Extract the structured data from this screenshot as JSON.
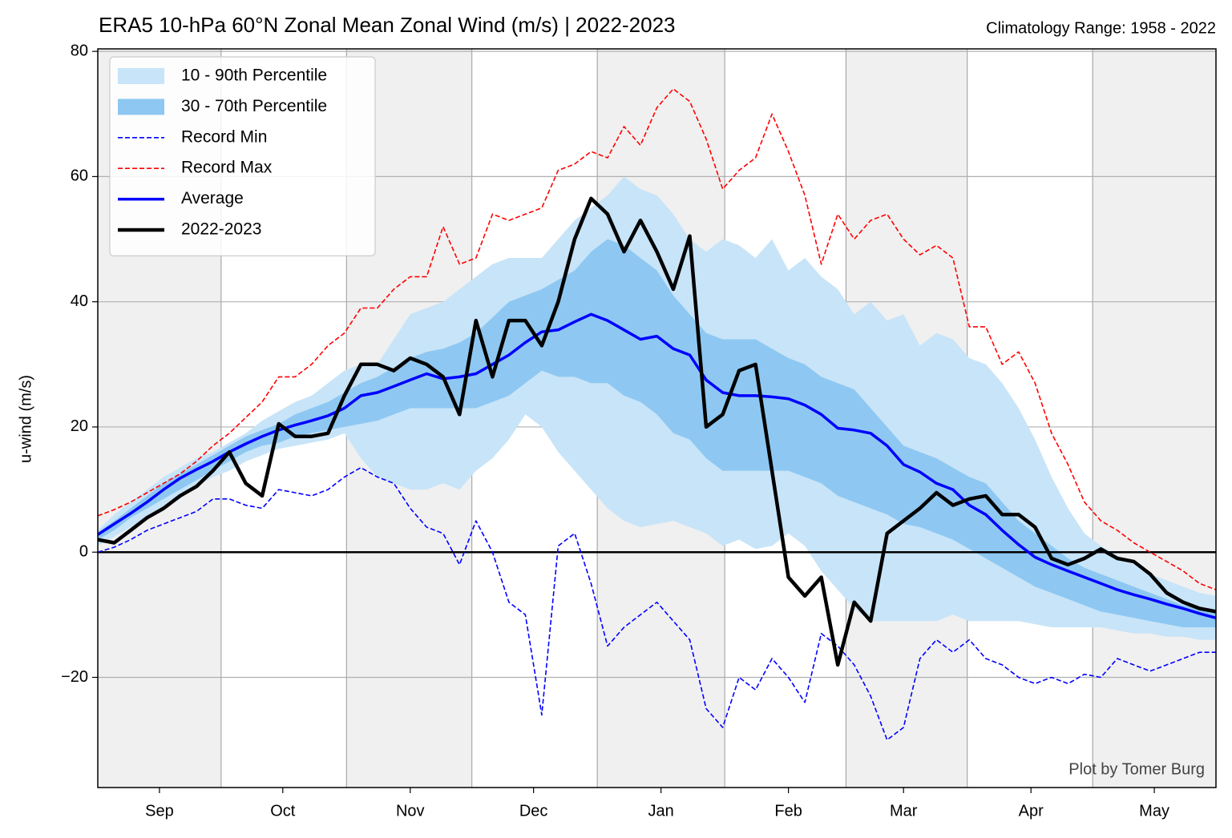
{
  "chart_data": {
    "type": "line",
    "title": "ERA5 10-hPa 60°N Zonal Mean Zonal Wind (m/s) | 2022-2023",
    "subtitle": "Climatology Range: 1958 - 2022",
    "ylabel": "u-wind (m/s)",
    "annotation": "Plot by Tomer Burg",
    "legend": "upper left",
    "grid": true,
    "x": [
      0,
      4,
      8,
      12,
      16,
      20,
      24,
      28,
      32,
      36,
      40,
      44,
      48,
      52,
      56,
      60,
      64,
      68,
      72,
      76,
      80,
      84,
      88,
      92,
      96,
      100,
      104,
      108,
      112,
      116,
      120,
      124,
      128,
      132,
      136,
      140,
      144,
      148,
      152,
      156,
      160,
      164,
      168,
      172,
      176,
      180,
      184,
      188,
      192,
      196,
      200,
      204,
      208,
      212,
      216,
      220,
      224,
      228,
      232,
      236,
      240,
      244,
      248,
      252,
      256,
      260,
      264,
      268,
      272
    ],
    "xlim": [
      0,
      272
    ],
    "xticks": [
      {
        "value": 15,
        "label": "Sep"
      },
      {
        "value": 45,
        "label": "Oct"
      },
      {
        "value": 76,
        "label": "Nov"
      },
      {
        "value": 106,
        "label": "Dec"
      },
      {
        "value": 137,
        "label": "Jan"
      },
      {
        "value": 168,
        "label": "Feb"
      },
      {
        "value": 196,
        "label": "Mar"
      },
      {
        "value": 227,
        "label": "Apr"
      },
      {
        "value": 257,
        "label": "May"
      }
    ],
    "ylim": [
      -37.6,
      80.4
    ],
    "yticks": [
      {
        "value": -20,
        "label": "−20"
      },
      0,
      20,
      40,
      60,
      80
    ],
    "bands": [
      {
        "name": "10 - 90th Percentile",
        "color": "#c8e4f8",
        "low": [
          1,
          2.5,
          4,
          5.5,
          7,
          8.5,
          10.5,
          12,
          13,
          14.5,
          15.5,
          16.5,
          17,
          17.5,
          18,
          19,
          15,
          12,
          11,
          10,
          10,
          11,
          10,
          13,
          15,
          18,
          22,
          20,
          16,
          13,
          10,
          7,
          5,
          4,
          4.5,
          5,
          4,
          3,
          1,
          2,
          0.5,
          1,
          3,
          1,
          -3,
          -6,
          -9,
          -11,
          -11,
          -11,
          -11,
          -11,
          -10,
          -11,
          -11,
          -11,
          -11,
          -11.5,
          -12,
          -12,
          -12,
          -12,
          -12.5,
          -13,
          -13,
          -13.5,
          -13.5,
          -14,
          -14
        ],
        "high": [
          3.5,
          6,
          8,
          10,
          12,
          13.5,
          15,
          16,
          17.5,
          19,
          21,
          22.5,
          24,
          25,
          27,
          29,
          30,
          30,
          34,
          38,
          39,
          40,
          42,
          44,
          46,
          47,
          47,
          47,
          50,
          53,
          55,
          57,
          60,
          58,
          57,
          54,
          50,
          48,
          50,
          49,
          47,
          50,
          45,
          47,
          44,
          42,
          38,
          40,
          37,
          38,
          33,
          35,
          34,
          31,
          30,
          27,
          23,
          18,
          12,
          7,
          3,
          1,
          -0.5,
          -2,
          -3.5,
          -4.5,
          -5.5,
          -6.5,
          -7
        ]
      },
      {
        "name": "30 - 70th Percentile",
        "color": "#8ec8f2",
        "low": [
          2,
          3.5,
          5.5,
          7,
          8.5,
          10,
          11.5,
          13,
          14.5,
          16,
          17,
          17.5,
          18.5,
          19,
          19.5,
          20,
          20.5,
          21,
          22,
          23,
          23,
          23,
          23,
          23,
          24,
          25,
          27,
          29,
          28,
          28,
          27,
          27,
          25,
          24,
          22,
          19,
          18,
          15,
          13,
          13,
          13,
          13,
          13,
          12,
          11,
          9,
          8,
          7,
          6,
          4.5,
          4,
          3,
          2,
          0.5,
          -1,
          -2.5,
          -4,
          -5.5,
          -6.5,
          -7.5,
          -8.5,
          -9.5,
          -10,
          -10.5,
          -11,
          -11.5,
          -12,
          -12,
          -12
        ],
        "high": [
          3.2,
          5,
          7,
          9,
          11,
          12.5,
          14,
          15.5,
          17,
          18.5,
          19.5,
          20.5,
          22,
          23,
          24,
          25.5,
          27,
          28,
          29.5,
          31,
          32,
          32.5,
          33.5,
          35,
          37.5,
          40,
          41,
          42,
          43.5,
          45,
          48,
          50,
          49,
          47,
          45,
          41,
          38,
          35,
          34,
          34,
          34,
          32.5,
          31,
          30,
          28,
          27,
          26,
          23,
          20,
          17,
          16,
          15,
          13.5,
          12,
          11,
          8,
          5,
          3,
          1,
          -1,
          -2.5,
          -3.5,
          -4.5,
          -5.5,
          -6.5,
          -7.5,
          -8.5,
          -9,
          -9.5
        ]
      }
    ],
    "series": [
      {
        "name": "Record Min",
        "color": "#0000ff",
        "dashed": true,
        "width": 1.6,
        "values": [
          0,
          0.8,
          2,
          3.5,
          4.5,
          5.5,
          6.5,
          8.5,
          8.5,
          7.5,
          7,
          10,
          9.5,
          9,
          10,
          12,
          13.5,
          12,
          11,
          7,
          4,
          3,
          -2,
          5,
          0,
          -8,
          -10,
          -26,
          1,
          3,
          -5,
          -15,
          -12,
          -10,
          -8,
          -11,
          -14,
          -25,
          -28,
          -20,
          -22,
          -17,
          -20,
          -24,
          -13,
          -15,
          -18,
          -23,
          -30,
          -28,
          -17,
          -14,
          -16,
          -14,
          -17,
          -18,
          -20,
          -21,
          -20,
          -21,
          -19.5,
          -20,
          -17,
          -18,
          -19,
          -18,
          -17,
          -16,
          -16
        ]
      },
      {
        "name": "Record Max",
        "color": "#ff0000",
        "dashed": true,
        "width": 1.6,
        "values": [
          5.8,
          6.8,
          8,
          9.5,
          11,
          12.5,
          14.5,
          17,
          19,
          21.5,
          24,
          28,
          28,
          30,
          33,
          35,
          39,
          39,
          42,
          44,
          44,
          52,
          46,
          47,
          54,
          53,
          54,
          55,
          61,
          62,
          64,
          63,
          68,
          65,
          71,
          74,
          72,
          66,
          58,
          61,
          63,
          70,
          64,
          57,
          46,
          54,
          50,
          53,
          54,
          50,
          47.5,
          49,
          47,
          36,
          36,
          30,
          32,
          27,
          19,
          14,
          8,
          5,
          3.5,
          1.5,
          0,
          -1.5,
          -3,
          -5,
          -6
        ]
      },
      {
        "name": "Average",
        "color": "#0000ff",
        "dashed": false,
        "width": 3.5,
        "values": [
          2.8,
          4.5,
          6.2,
          8,
          10,
          11.8,
          13.2,
          14.5,
          16,
          17.3,
          18.5,
          19.5,
          20.3,
          21,
          21.8,
          23,
          25,
          25.5,
          26.5,
          27.5,
          28.5,
          27.7,
          28,
          28.5,
          30,
          31.5,
          33.5,
          35.2,
          35.5,
          36.8,
          38,
          37,
          35.5,
          34,
          34.5,
          32.5,
          31.5,
          27.5,
          25.5,
          25,
          25,
          24.8,
          24.5,
          23.5,
          22,
          19.8,
          19.5,
          19,
          17,
          14,
          12.8,
          11,
          10,
          7.5,
          6,
          3.5,
          1.2,
          -0.8,
          -2,
          -3,
          -4,
          -5,
          -6,
          -6.8,
          -7.5,
          -8.3,
          -9,
          -9.8,
          -10.5
        ]
      },
      {
        "name": "2022-2023",
        "color": "#000000",
        "dashed": false,
        "width": 4.5,
        "values": [
          2,
          1.5,
          3.5,
          5.5,
          7,
          9,
          10.5,
          13,
          16,
          11,
          9,
          20.5,
          18.5,
          18.5,
          19,
          25,
          30,
          30,
          29,
          31,
          30,
          28,
          22,
          37,
          28,
          37,
          37,
          33,
          40,
          50,
          56.5,
          54,
          48,
          53,
          48,
          42,
          50.5,
          20,
          22,
          29,
          30,
          13,
          -4,
          -7,
          -4,
          -18,
          -8,
          -11,
          3,
          5,
          7,
          9.5,
          7.5,
          8.5,
          9,
          6,
          6,
          4,
          -1,
          -2,
          -1,
          0.5,
          -1,
          -1.5,
          -3.5,
          -6.5,
          -8,
          -9,
          -9.5
        ]
      }
    ]
  }
}
